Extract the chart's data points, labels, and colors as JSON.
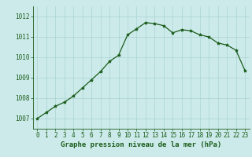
{
  "x": [
    0,
    1,
    2,
    3,
    4,
    5,
    6,
    7,
    8,
    9,
    10,
    11,
    12,
    13,
    14,
    15,
    16,
    17,
    18,
    19,
    20,
    21,
    22,
    23
  ],
  "y": [
    1007.0,
    1007.3,
    1007.6,
    1007.8,
    1008.1,
    1008.5,
    1008.9,
    1009.3,
    1009.8,
    1010.1,
    1011.1,
    1011.4,
    1011.7,
    1011.65,
    1011.55,
    1011.2,
    1011.35,
    1011.3,
    1011.1,
    1011.0,
    1010.7,
    1010.6,
    1010.35,
    1009.35
  ],
  "line_color": "#1a5c1a",
  "marker": "*",
  "marker_size": 3,
  "bg_color": "#cceaea",
  "grid_color": "#aad4d4",
  "xlabel": "Graphe pression niveau de la mer (hPa)",
  "xlabel_fontsize": 6.5,
  "tick_fontsize": 5.5,
  "ylim": [
    1006.5,
    1012.5
  ],
  "yticks": [
    1007,
    1008,
    1009,
    1010,
    1011,
    1012
  ],
  "xticks": [
    0,
    1,
    2,
    3,
    4,
    5,
    6,
    7,
    8,
    9,
    10,
    11,
    12,
    13,
    14,
    15,
    16,
    17,
    18,
    19,
    20,
    21,
    22,
    23
  ]
}
